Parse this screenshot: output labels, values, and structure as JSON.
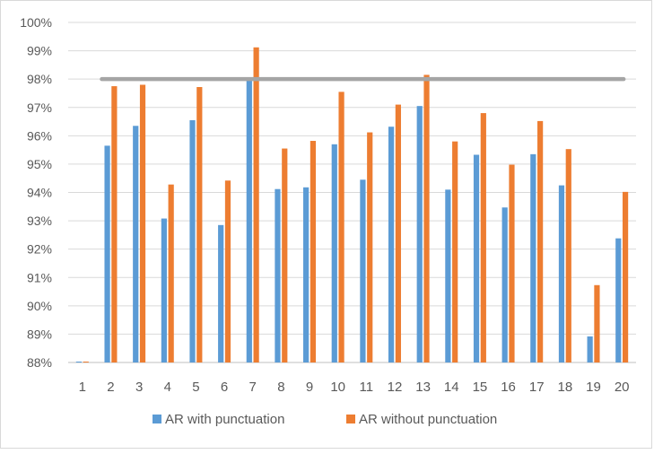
{
  "chart_data": {
    "type": "bar",
    "categories": [
      "1",
      "2",
      "3",
      "4",
      "5",
      "6",
      "7",
      "8",
      "9",
      "10",
      "11",
      "12",
      "13",
      "14",
      "15",
      "16",
      "17",
      "18",
      "19",
      "20"
    ],
    "series": [
      {
        "name": "AR with punctuation",
        "color": "#5b9bd5",
        "values": [
          88.0,
          95.65,
          96.35,
          93.08,
          96.55,
          92.85,
          98.0,
          94.12,
          94.18,
          95.7,
          94.45,
          96.32,
          97.05,
          94.1,
          95.33,
          93.47,
          95.35,
          94.25,
          88.92,
          92.38
        ]
      },
      {
        "name": "AR without punctuation",
        "color": "#ed7d31",
        "values": [
          88.0,
          97.75,
          97.8,
          94.28,
          97.72,
          94.42,
          99.12,
          95.55,
          95.82,
          97.55,
          96.12,
          97.1,
          98.15,
          95.8,
          96.8,
          94.98,
          96.52,
          95.53,
          90.73,
          94.02
        ]
      }
    ],
    "reference_line": {
      "value": 98.0,
      "from_category": "2",
      "to_category": "20",
      "color": "#a5a5a5"
    },
    "ylim": [
      88,
      100
    ],
    "yticks": [
      "88%",
      "89%",
      "90%",
      "91%",
      "92%",
      "93%",
      "94%",
      "95%",
      "96%",
      "97%",
      "98%",
      "99%",
      "100%"
    ],
    "grid": true,
    "legend_position": "bottom",
    "title": "",
    "xlabel": "",
    "ylabel": ""
  }
}
